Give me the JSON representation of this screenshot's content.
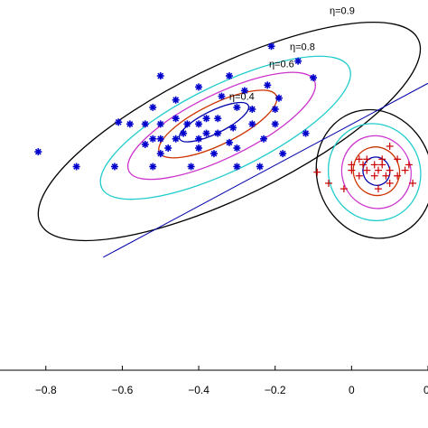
{
  "chart_data": {
    "type": "scatter",
    "xlim": [
      -0.92,
      0.2
    ],
    "ylim": [
      -1.0,
      1.0
    ],
    "x_ticks": [
      {
        "value": -0.8,
        "label": "−0.8"
      },
      {
        "value": -0.6,
        "label": "−0.6"
      },
      {
        "value": -0.4,
        "label": "−0.4"
      },
      {
        "value": -0.2,
        "label": "−0.2"
      },
      {
        "value": 0,
        "label": "0"
      },
      {
        "value": 0.2,
        "label": "0."
      }
    ],
    "series": [
      {
        "marker": "asterisk",
        "color": "#0000cc",
        "points": [
          [
            -0.21,
            0.75
          ],
          [
            -0.14,
            0.67
          ],
          [
            -0.32,
            0.59
          ],
          [
            -0.5,
            0.59
          ],
          [
            -0.1,
            0.58
          ],
          [
            -0.22,
            0.54
          ],
          [
            -0.4,
            0.53
          ],
          [
            -0.28,
            0.51
          ],
          [
            -0.34,
            0.48
          ],
          [
            -0.46,
            0.46
          ],
          [
            -0.19,
            0.47
          ],
          [
            -0.52,
            0.42
          ],
          [
            -0.3,
            0.42
          ],
          [
            -0.26,
            0.41
          ],
          [
            -0.2,
            0.41
          ],
          [
            -0.46,
            0.36
          ],
          [
            -0.38,
            0.36
          ],
          [
            -0.35,
            0.36
          ],
          [
            -0.4,
            0.33
          ],
          [
            -0.31,
            0.31
          ],
          [
            -0.26,
            0.33
          ],
          [
            -0.61,
            0.34
          ],
          [
            -0.58,
            0.33
          ],
          [
            -0.54,
            0.33
          ],
          [
            -0.43,
            0.33
          ],
          [
            -0.5,
            0.33
          ],
          [
            -0.44,
            0.28
          ],
          [
            -0.38,
            0.28
          ],
          [
            -0.35,
            0.28
          ],
          [
            -0.5,
            0.25
          ],
          [
            -0.2,
            0.33
          ],
          [
            -0.4,
            0.25
          ],
          [
            -0.46,
            0.25
          ],
          [
            -0.52,
            0.25
          ],
          [
            -0.32,
            0.23
          ],
          [
            -0.23,
            0.25
          ],
          [
            -0.12,
            0.28
          ],
          [
            -0.54,
            0.22
          ],
          [
            -0.48,
            0.2
          ],
          [
            -0.4,
            0.2
          ],
          [
            -0.3,
            0.2
          ],
          [
            -0.82,
            0.18
          ],
          [
            -0.5,
            0.17
          ],
          [
            -0.36,
            0.17
          ],
          [
            -0.18,
            0.17
          ],
          [
            -0.72,
            0.1
          ],
          [
            -0.62,
            0.1
          ],
          [
            -0.52,
            0.1
          ],
          [
            -0.42,
            0.1
          ],
          [
            -0.3,
            0.1
          ],
          [
            -0.24,
            0.1
          ]
        ]
      },
      {
        "marker": "plus",
        "color": "#cc0000",
        "points": [
          [
            0.1,
            0.21
          ],
          [
            0.02,
            0.14
          ],
          [
            0.04,
            0.14
          ],
          [
            0.08,
            0.14
          ],
          [
            0.12,
            0.14
          ],
          [
            0,
            0.11
          ],
          [
            0.03,
            0.11
          ],
          [
            0.06,
            0.11
          ],
          [
            0.08,
            0.11
          ],
          [
            0.15,
            0.11
          ],
          [
            0.0,
            0.08
          ],
          [
            0.04,
            0.08
          ],
          [
            0.07,
            0.08
          ],
          [
            0.1,
            0.08
          ],
          [
            0.14,
            0.08
          ],
          [
            -0.09,
            0.07
          ],
          [
            0.02,
            0.05
          ],
          [
            0.06,
            0.05
          ],
          [
            0.09,
            0.05
          ],
          [
            0.12,
            0.05
          ],
          [
            -0.06,
            0.01
          ],
          [
            0.1,
            0.01
          ],
          [
            0.16,
            0.01
          ],
          [
            -0.02,
            -0.02
          ],
          [
            0.07,
            -0.02
          ]
        ]
      }
    ],
    "contours": [
      {
        "label": "η=0.9",
        "color": "#000000",
        "cx": -0.32,
        "cy": 0.29,
        "rx": 0.55,
        "ry": 0.16,
        "rot_deg": -26
      },
      {
        "label": "η=0.8",
        "color": "#22cccc",
        "cx": -0.33,
        "cy": 0.31,
        "rx": 0.36,
        "ry": 0.105,
        "rot_deg": -26
      },
      {
        "label": "η=0.6",
        "color": "#cc33cc",
        "cx": -0.34,
        "cy": 0.32,
        "rx": 0.27,
        "ry": 0.078,
        "rot_deg": -26
      },
      {
        "label": "",
        "color": "#cc3300",
        "cx": -0.35,
        "cy": 0.33,
        "rx": 0.17,
        "ry": 0.05,
        "rot_deg": -26
      },
      {
        "label": "η=0.4",
        "color": "#0000aa",
        "cx": -0.36,
        "cy": 0.34,
        "rx": 0.1,
        "ry": 0.028,
        "rot_deg": -26
      },
      {
        "label": "",
        "color": "#000000",
        "cx": 0.06,
        "cy": 0.06,
        "rx": 0.15,
        "ry": 0.16,
        "rot_deg": -20
      },
      {
        "label": "",
        "color": "#22cccc",
        "cx": 0.06,
        "cy": 0.07,
        "rx": 0.12,
        "ry": 0.12,
        "rot_deg": -20
      },
      {
        "label": "",
        "color": "#cc33cc",
        "cx": 0.065,
        "cy": 0.07,
        "rx": 0.09,
        "ry": 0.09,
        "rot_deg": -20
      },
      {
        "label": "",
        "color": "#cc3300",
        "cx": 0.065,
        "cy": 0.075,
        "rx": 0.06,
        "ry": 0.06,
        "rot_deg": -20
      },
      {
        "label": "",
        "color": "#0000aa",
        "cx": 0.065,
        "cy": 0.075,
        "rx": 0.035,
        "ry": 0.035,
        "rot_deg": -20
      }
    ],
    "lines": [
      {
        "color": "#0000aa",
        "x1": -0.65,
        "y1": -0.39,
        "x2": 0.2,
        "y2": 0.55
      }
    ]
  }
}
